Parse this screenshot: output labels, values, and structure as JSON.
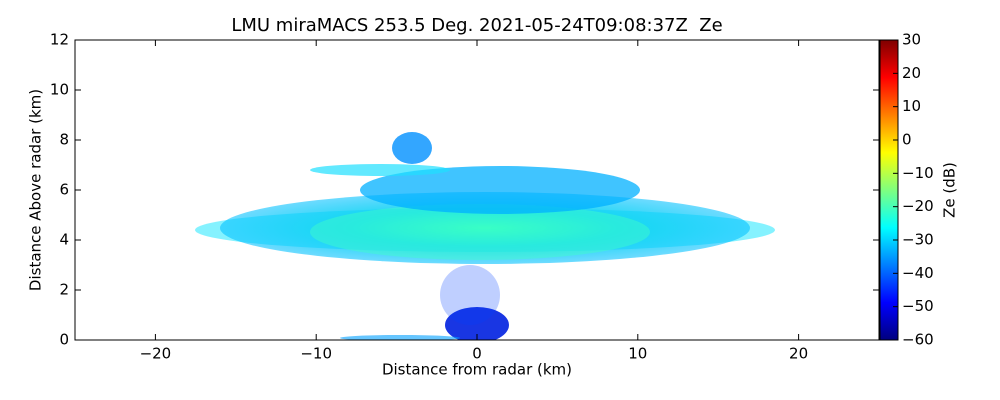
{
  "chart_data": {
    "type": "heatmap",
    "title": "LMU miraMACS 253.5 Deg. 2021-05-24T09:08:37Z  Ze",
    "x_label": "Distance from radar (km)",
    "y_label": "Distance Above radar  (km)",
    "colorbar_label": "Ze (dB)",
    "xlim": [
      -25,
      25
    ],
    "xticks": [
      {
        "value": -20,
        "label": "−20"
      },
      {
        "value": -10,
        "label": "−10"
      },
      0,
      10,
      20
    ],
    "ylim": [
      0,
      12
    ],
    "yticks": [
      0,
      2,
      4,
      6,
      8,
      10,
      12
    ],
    "clim": [
      -60,
      30
    ],
    "cticks": [
      {
        "value": -60,
        "label": "−60"
      },
      {
        "value": -50,
        "label": "−50"
      },
      {
        "value": -40,
        "label": "−40"
      },
      {
        "value": -30,
        "label": "−30"
      },
      {
        "value": -20,
        "label": "−20"
      },
      {
        "value": -10,
        "label": "−10"
      },
      0,
      10,
      20,
      30
    ],
    "colormap": [
      "#00007f",
      "#0000ff",
      "#007fff",
      "#00ffff",
      "#7fff7f",
      "#ffff00",
      "#ff7f00",
      "#ff0000",
      "#7f0000"
    ]
  }
}
